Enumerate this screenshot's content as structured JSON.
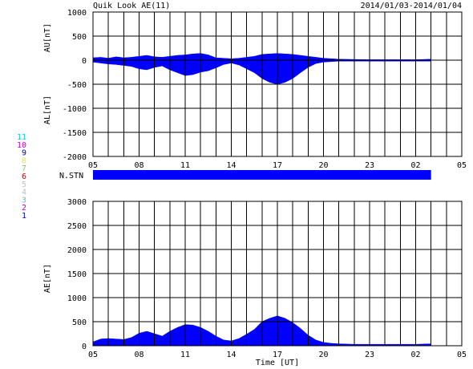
{
  "header": {
    "title": "Quik Look AE(11)",
    "date_range": "2014/01/03-2014/01/04"
  },
  "labels": {
    "au_axis": "AU[nT]",
    "al_axis": "AL[nT]",
    "nstn": "N.STN",
    "ae_axis": "AE[nT]",
    "time_axis": "Time [UT]"
  },
  "station_legend": [
    {
      "text": "11",
      "color": "#00d0d0"
    },
    {
      "text": "10",
      "color": "#d000d0"
    },
    {
      "text": "9",
      "color": "#0000c0"
    },
    {
      "text": "8",
      "color": "#e0e060"
    },
    {
      "text": "7",
      "color": "#80c080"
    },
    {
      "text": "6",
      "color": "#e00000"
    },
    {
      "text": "5",
      "color": "#c0c0c0"
    },
    {
      "text": "4",
      "color": "#c0c0c0"
    },
    {
      "text": "3",
      "color": "#60c0c0"
    },
    {
      "text": "2",
      "color": "#c000c0"
    },
    {
      "text": "1",
      "color": "#0000c0"
    }
  ],
  "colors": {
    "fill": "#0000ff",
    "grid": "#000000"
  },
  "chart_data": [
    {
      "type": "area",
      "title": "",
      "ylabel_top": "AU[nT]",
      "ylabel_bottom": "AL[nT]",
      "x_ticks": [
        "05",
        "08",
        "11",
        "14",
        "17",
        "20",
        "23",
        "02",
        "05"
      ],
      "x_range_hours": [
        5,
        29
      ],
      "data_end_hour": 27.0,
      "ylim": [
        -2000,
        1000
      ],
      "y_ticks": [
        "1000",
        "500",
        "0",
        "-500",
        "-1000",
        "-1500",
        "-2000"
      ],
      "y_tick_values": [
        1000,
        500,
        0,
        -500,
        -1000,
        -1500,
        -2000
      ],
      "grid": true,
      "series": [
        {
          "role": "AU",
          "x": [
            5.0,
            5.5,
            6.0,
            6.5,
            7.0,
            7.5,
            8.0,
            8.5,
            9.0,
            9.5,
            10.0,
            10.5,
            11.0,
            11.5,
            12.0,
            12.5,
            13.0,
            13.5,
            14.0,
            14.5,
            15.0,
            15.5,
            16.0,
            16.5,
            17.0,
            17.5,
            18.0,
            18.5,
            19.0,
            19.5,
            20.0,
            20.5,
            21.0,
            22.0,
            23.0,
            24.0,
            25.0,
            26.0,
            27.0
          ],
          "y": [
            50,
            60,
            40,
            70,
            50,
            60,
            80,
            100,
            70,
            60,
            80,
            100,
            110,
            130,
            140,
            110,
            50,
            40,
            30,
            40,
            60,
            80,
            120,
            130,
            140,
            130,
            120,
            100,
            80,
            60,
            40,
            30,
            20,
            15,
            10,
            10,
            10,
            10,
            20
          ]
        },
        {
          "role": "AL",
          "x": [
            5.0,
            5.5,
            6.0,
            6.5,
            7.0,
            7.5,
            8.0,
            8.5,
            9.0,
            9.5,
            10.0,
            10.5,
            11.0,
            11.5,
            12.0,
            12.5,
            13.0,
            13.5,
            14.0,
            14.5,
            15.0,
            15.5,
            16.0,
            16.5,
            17.0,
            17.5,
            18.0,
            18.5,
            19.0,
            19.5,
            20.0,
            20.5,
            21.0,
            22.0,
            23.0,
            24.0,
            25.0,
            26.0,
            27.0
          ],
          "y": [
            -40,
            -60,
            -80,
            -90,
            -110,
            -130,
            -180,
            -200,
            -150,
            -120,
            -200,
            -260,
            -320,
            -300,
            -250,
            -220,
            -160,
            -90,
            -60,
            -100,
            -180,
            -260,
            -380,
            -460,
            -500,
            -460,
            -380,
            -260,
            -150,
            -70,
            -40,
            -30,
            -20,
            -20,
            -20,
            -20,
            -20,
            -20,
            -20
          ]
        }
      ]
    },
    {
      "type": "bar",
      "title": "",
      "ylabel": "N.STN",
      "note": "station count band, constant over data interval",
      "x_range_hours": [
        5,
        29
      ],
      "data_end_hour": 27.0,
      "value": 11
    },
    {
      "type": "area",
      "title": "",
      "ylabel": "AE[nT]",
      "xlabel": "Time [UT]",
      "x_ticks": [
        "05",
        "08",
        "11",
        "14",
        "17",
        "20",
        "23",
        "02",
        "05"
      ],
      "x_range_hours": [
        5,
        29
      ],
      "data_end_hour": 27.0,
      "ylim": [
        0,
        3000
      ],
      "y_ticks": [
        "3000",
        "2500",
        "2000",
        "1500",
        "1000",
        "500",
        "0"
      ],
      "y_tick_values": [
        3000,
        2500,
        2000,
        1500,
        1000,
        500,
        0
      ],
      "grid": true,
      "series": [
        {
          "role": "AE",
          "x": [
            5.0,
            5.5,
            6.0,
            6.5,
            7.0,
            7.5,
            8.0,
            8.5,
            9.0,
            9.5,
            10.0,
            10.5,
            11.0,
            11.5,
            12.0,
            12.5,
            13.0,
            13.5,
            14.0,
            14.5,
            15.0,
            15.5,
            16.0,
            16.5,
            17.0,
            17.5,
            18.0,
            18.5,
            19.0,
            19.5,
            20.0,
            20.5,
            21.0,
            22.0,
            23.0,
            24.0,
            25.0,
            26.0,
            27.0
          ],
          "y": [
            80,
            140,
            150,
            140,
            130,
            170,
            260,
            300,
            250,
            200,
            300,
            380,
            440,
            430,
            380,
            300,
            200,
            120,
            100,
            150,
            240,
            340,
            500,
            570,
            620,
            570,
            480,
            360,
            220,
            120,
            70,
            50,
            40,
            30,
            30,
            30,
            30,
            30,
            40
          ]
        }
      ]
    }
  ]
}
